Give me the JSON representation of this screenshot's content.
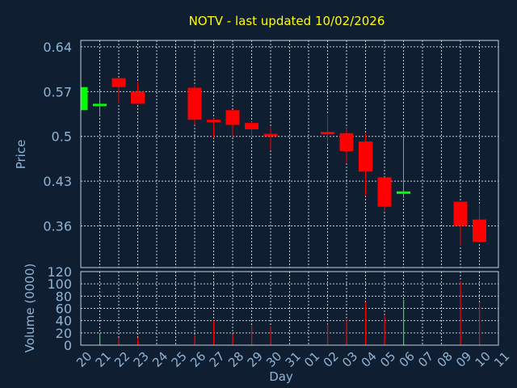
{
  "chart_data": [
    {
      "type": "candlestick",
      "title": "NOTV - last updated 10/02/2026",
      "ylabel": "Price",
      "yticks": [
        "0.64",
        "0.57",
        "0.5",
        "0.43",
        "0.36"
      ],
      "ylim": [
        0.295,
        0.65
      ],
      "days": [
        "20",
        "21",
        "22",
        "23",
        "24",
        "25",
        "26",
        "27",
        "28",
        "29",
        "30",
        "31",
        "01",
        "02",
        "03",
        "04",
        "05",
        "06",
        "07",
        "08",
        "09",
        "10",
        "11"
      ],
      "candles": [
        {
          "day": "20",
          "open": 0.541,
          "high": 0.578,
          "low": 0.541,
          "close": 0.577
        },
        {
          "day": "21",
          "open": 0.548,
          "high": 0.572,
          "low": 0.532,
          "close": 0.551
        },
        {
          "day": "22",
          "open": 0.591,
          "high": 0.591,
          "low": 0.551,
          "close": 0.577
        },
        {
          "day": "23",
          "open": 0.57,
          "high": 0.585,
          "low": 0.551,
          "close": 0.551
        },
        {
          "day": "26",
          "open": 0.576,
          "high": 0.58,
          "low": 0.518,
          "close": 0.526
        },
        {
          "day": "27",
          "open": 0.526,
          "high": 0.528,
          "low": 0.498,
          "close": 0.523
        },
        {
          "day": "28",
          "open": 0.541,
          "high": 0.541,
          "low": 0.5,
          "close": 0.518
        },
        {
          "day": "29",
          "open": 0.521,
          "high": 0.523,
          "low": 0.499,
          "close": 0.511
        },
        {
          "day": "30",
          "open": 0.504,
          "high": 0.515,
          "low": 0.479,
          "close": 0.501
        },
        {
          "day": "02",
          "open": 0.507,
          "high": 0.534,
          "low": 0.488,
          "close": 0.504
        },
        {
          "day": "03",
          "open": 0.505,
          "high": 0.513,
          "low": 0.459,
          "close": 0.477
        },
        {
          "day": "04",
          "open": 0.492,
          "high": 0.505,
          "low": 0.408,
          "close": 0.445
        },
        {
          "day": "05",
          "open": 0.436,
          "high": 0.436,
          "low": 0.383,
          "close": 0.39
        },
        {
          "day": "06",
          "open": 0.411,
          "high": 0.5,
          "low": 0.404,
          "close": 0.414
        },
        {
          "day": "09",
          "open": 0.398,
          "high": 0.398,
          "low": 0.329,
          "close": 0.36
        },
        {
          "day": "10",
          "open": 0.37,
          "high": 0.393,
          "low": 0.334,
          "close": 0.335
        }
      ]
    },
    {
      "type": "bar",
      "xlabel": "Day",
      "ylabel": "Volume (0000)",
      "yticks": [
        "120",
        "100",
        "80",
        "60",
        "40",
        "20",
        "0"
      ],
      "ylim": [
        0,
        120
      ],
      "categories": [
        "20",
        "21",
        "22",
        "23",
        "26",
        "27",
        "28",
        "29",
        "30",
        "02",
        "03",
        "04",
        "05",
        "06",
        "09",
        "10"
      ],
      "values": [
        0,
        20,
        12,
        12,
        16,
        40,
        18,
        32,
        30,
        34,
        42,
        70,
        48,
        74,
        104,
        70
      ],
      "colors": [
        "#ff0000",
        "#00ff00",
        "#ff0000",
        "#ff0000",
        "#ff0000",
        "#ff0000",
        "#ff0000",
        "#ff0000",
        "#ff0000",
        "#ff0000",
        "#ff0000",
        "#ff0000",
        "#ff0000",
        "#00ff00",
        "#ff0000",
        "#ff0000"
      ]
    }
  ]
}
